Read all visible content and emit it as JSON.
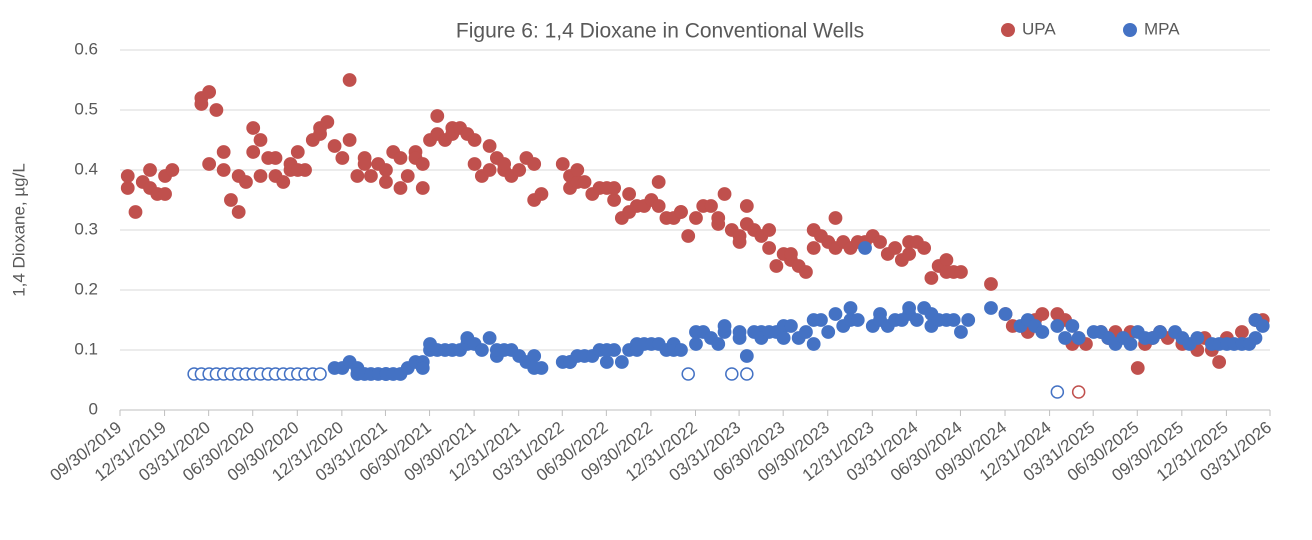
{
  "chart_data": {
    "type": "scatter",
    "title": "Figure 6: 1,4 Dioxane in Conventional Wells",
    "y_label": "1,4 Dioxane, µg/L",
    "legend": "top-right",
    "grid": true,
    "xlim": [
      "09/30/2019",
      "03/31/2026"
    ],
    "xticks": [
      "09/30/2019",
      "12/31/2019",
      "03/31/2020",
      "06/30/2020",
      "09/30/2020",
      "12/31/2020",
      "03/31/2021",
      "06/30/2021",
      "09/30/2021",
      "12/31/2021",
      "03/31/2022",
      "06/30/2022",
      "09/30/2022",
      "12/31/2022",
      "03/31/2023",
      "06/30/2023",
      "09/30/2023",
      "12/31/2023",
      "03/31/2024",
      "06/30/2024",
      "09/30/2024",
      "12/31/2024",
      "03/31/2025",
      "06/30/2025",
      "09/30/2025",
      "12/31/2025",
      "03/31/2026"
    ],
    "ylim": [
      0,
      0.6
    ],
    "yticks": [
      0,
      0.1,
      0.2,
      0.3,
      0.4,
      0.5,
      0.6
    ],
    "series": [
      {
        "name": "UPA",
        "color": "#c0504d",
        "hollow": [
          178
        ],
        "x": [
          "10/16/2019",
          "10/16/2019",
          "11/01/2019",
          "11/16/2019",
          "12/01/2019",
          "12/01/2019",
          "12/16/2019",
          "01/01/2020",
          "01/01/2020",
          "01/16/2020",
          "03/16/2020",
          "03/16/2020",
          "04/01/2020",
          "04/01/2020",
          "04/16/2020",
          "05/01/2020",
          "05/01/2020",
          "05/16/2020",
          "06/01/2020",
          "06/01/2020",
          "06/16/2020",
          "07/01/2020",
          "07/01/2020",
          "07/16/2020",
          "07/16/2020",
          "08/01/2020",
          "08/16/2020",
          "08/16/2020",
          "09/01/2020",
          "09/16/2020",
          "09/16/2020",
          "10/01/2020",
          "10/01/2020",
          "10/16/2020",
          "11/01/2020",
          "11/16/2020",
          "11/16/2020",
          "12/01/2020",
          "12/16/2020",
          "01/01/2021",
          "01/16/2021",
          "01/16/2021",
          "02/01/2021",
          "02/16/2021",
          "02/16/2021",
          "03/01/2021",
          "03/16/2021",
          "04/01/2021",
          "04/01/2021",
          "04/16/2021",
          "05/01/2021",
          "05/01/2021",
          "05/16/2021",
          "06/01/2021",
          "06/01/2021",
          "06/16/2021",
          "06/16/2021",
          "07/01/2021",
          "07/16/2021",
          "07/16/2021",
          "08/01/2021",
          "08/16/2021",
          "08/16/2021",
          "09/01/2021",
          "09/16/2021",
          "10/01/2021",
          "10/01/2021",
          "10/16/2021",
          "11/01/2021",
          "11/01/2021",
          "11/16/2021",
          "12/01/2021",
          "12/01/2021",
          "12/16/2021",
          "01/01/2022",
          "01/16/2022",
          "02/01/2022",
          "02/01/2022",
          "02/16/2022",
          "04/01/2022",
          "04/16/2022",
          "04/16/2022",
          "05/01/2022",
          "05/01/2022",
          "05/16/2022",
          "06/01/2022",
          "06/16/2022",
          "07/01/2022",
          "07/16/2022",
          "07/16/2022",
          "08/01/2022",
          "08/16/2022",
          "08/16/2022",
          "09/01/2022",
          "09/16/2022",
          "10/01/2022",
          "10/16/2022",
          "10/16/2022",
          "11/01/2022",
          "11/16/2022",
          "12/01/2022",
          "12/01/2022",
          "12/16/2022",
          "01/01/2023",
          "01/16/2023",
          "02/01/2023",
          "02/16/2023",
          "02/16/2023",
          "03/01/2023",
          "03/16/2023",
          "04/01/2023",
          "04/01/2023",
          "04/16/2023",
          "04/16/2023",
          "05/01/2023",
          "05/16/2023",
          "06/01/2023",
          "06/01/2023",
          "06/16/2023",
          "07/01/2023",
          "07/16/2023",
          "07/16/2023",
          "08/01/2023",
          "08/16/2023",
          "09/01/2023",
          "09/01/2023",
          "09/16/2023",
          "10/01/2023",
          "10/16/2023",
          "10/16/2023",
          "11/01/2023",
          "11/16/2023",
          "12/01/2023",
          "12/16/2023",
          "01/01/2024",
          "01/16/2024",
          "02/01/2024",
          "02/16/2024",
          "03/01/2024",
          "03/16/2024",
          "03/16/2024",
          "04/01/2024",
          "04/16/2024",
          "05/01/2024",
          "05/16/2024",
          "06/01/2024",
          "06/01/2024",
          "06/16/2024",
          "07/01/2024",
          "09/01/2024",
          "10/01/2024",
          "10/16/2024",
          "11/16/2024",
          "12/01/2024",
          "12/16/2024",
          "01/16/2025",
          "02/01/2025",
          "02/16/2025",
          "03/01/2025",
          "03/16/2025",
          "04/16/2025",
          "05/01/2025",
          "05/16/2025",
          "06/16/2025",
          "07/01/2025",
          "07/16/2025",
          "08/01/2025",
          "08/16/2025",
          "09/01/2025",
          "10/01/2025",
          "11/01/2025",
          "11/16/2025",
          "12/01/2025",
          "12/16/2025",
          "01/01/2026",
          "02/01/2026",
          "03/01/2026",
          "03/16/2026",
          "03/01/2025"
        ],
        "values": [
          0.37,
          0.39,
          0.33,
          0.38,
          0.4,
          0.37,
          0.36,
          0.36,
          0.39,
          0.4,
          0.52,
          0.51,
          0.53,
          0.41,
          0.5,
          0.43,
          0.4,
          0.35,
          0.33,
          0.39,
          0.38,
          0.47,
          0.43,
          0.39,
          0.45,
          0.42,
          0.39,
          0.42,
          0.38,
          0.4,
          0.41,
          0.4,
          0.43,
          0.4,
          0.45,
          0.46,
          0.47,
          0.48,
          0.44,
          0.42,
          0.55,
          0.45,
          0.39,
          0.42,
          0.41,
          0.39,
          0.41,
          0.38,
          0.4,
          0.43,
          0.42,
          0.37,
          0.39,
          0.43,
          0.42,
          0.41,
          0.37,
          0.45,
          0.49,
          0.46,
          0.45,
          0.47,
          0.46,
          0.47,
          0.46,
          0.45,
          0.41,
          0.39,
          0.4,
          0.44,
          0.42,
          0.4,
          0.41,
          0.39,
          0.4,
          0.42,
          0.41,
          0.35,
          0.36,
          0.41,
          0.37,
          0.39,
          0.38,
          0.4,
          0.38,
          0.36,
          0.37,
          0.37,
          0.35,
          0.37,
          0.32,
          0.33,
          0.36,
          0.34,
          0.34,
          0.35,
          0.34,
          0.38,
          0.32,
          0.32,
          0.33,
          0.33,
          0.29,
          0.32,
          0.34,
          0.34,
          0.31,
          0.32,
          0.36,
          0.3,
          0.29,
          0.28,
          0.34,
          0.31,
          0.3,
          0.29,
          0.3,
          0.27,
          0.24,
          0.26,
          0.25,
          0.26,
          0.24,
          0.23,
          0.27,
          0.3,
          0.29,
          0.28,
          0.32,
          0.27,
          0.28,
          0.27,
          0.28,
          0.28,
          0.29,
          0.28,
          0.26,
          0.27,
          0.25,
          0.28,
          0.26,
          0.28,
          0.27,
          0.22,
          0.24,
          0.25,
          0.23,
          0.23,
          0.23,
          0.21,
          0.16,
          0.14,
          0.13,
          0.15,
          0.16,
          0.16,
          0.15,
          0.11,
          0.12,
          0.11,
          0.13,
          0.12,
          0.13,
          0.13,
          0.07,
          0.11,
          0.12,
          0.13,
          0.12,
          0.11,
          0.1,
          0.12,
          0.1,
          0.08,
          0.12,
          0.13,
          0.15,
          0.15,
          0.03
        ]
      },
      {
        "name": "MPA",
        "color": "#4472c4",
        "hollow": [
          137,
          138,
          139,
          140,
          141,
          142,
          143,
          144,
          145,
          146,
          147,
          148,
          149,
          150,
          151,
          152,
          153,
          154,
          155,
          156,
          157,
          158
        ],
        "x": [
          "12/16/2020",
          "01/01/2021",
          "01/16/2021",
          "02/01/2021",
          "02/01/2021",
          "02/16/2021",
          "03/01/2021",
          "03/16/2021",
          "04/01/2021",
          "04/01/2021",
          "04/16/2021",
          "05/01/2021",
          "05/16/2021",
          "06/01/2021",
          "06/16/2021",
          "06/16/2021",
          "07/01/2021",
          "07/01/2021",
          "07/16/2021",
          "08/01/2021",
          "08/16/2021",
          "09/01/2021",
          "09/16/2021",
          "09/16/2021",
          "10/01/2021",
          "10/16/2021",
          "11/01/2021",
          "11/16/2021",
          "11/16/2021",
          "12/01/2021",
          "12/16/2021",
          "01/01/2022",
          "01/16/2022",
          "02/01/2022",
          "02/01/2022",
          "02/16/2022",
          "04/01/2022",
          "04/16/2022",
          "04/16/2022",
          "05/01/2022",
          "05/16/2022",
          "06/01/2022",
          "06/16/2022",
          "07/01/2022",
          "07/01/2022",
          "07/16/2022",
          "08/01/2022",
          "08/16/2022",
          "09/01/2022",
          "09/01/2022",
          "09/16/2022",
          "10/01/2022",
          "10/16/2022",
          "11/01/2022",
          "11/16/2022",
          "11/16/2022",
          "12/01/2022",
          "01/01/2023",
          "01/01/2023",
          "01/16/2023",
          "02/01/2023",
          "02/16/2023",
          "03/01/2023",
          "03/01/2023",
          "04/01/2023",
          "04/01/2023",
          "04/16/2023",
          "05/01/2023",
          "05/16/2023",
          "05/16/2023",
          "06/01/2023",
          "06/16/2023",
          "07/01/2023",
          "07/01/2023",
          "07/16/2023",
          "08/01/2023",
          "08/16/2023",
          "09/01/2023",
          "09/01/2023",
          "09/16/2023",
          "10/01/2023",
          "10/16/2023",
          "11/01/2023",
          "11/16/2023",
          "11/16/2023",
          "12/01/2023",
          "12/16/2023",
          "01/01/2024",
          "01/16/2024",
          "01/16/2024",
          "02/01/2024",
          "02/16/2024",
          "03/01/2024",
          "03/16/2024",
          "03/16/2024",
          "04/01/2024",
          "04/16/2024",
          "05/01/2024",
          "05/01/2024",
          "05/16/2024",
          "06/01/2024",
          "06/16/2024",
          "07/01/2024",
          "07/16/2024",
          "09/01/2024",
          "10/01/2024",
          "11/01/2024",
          "11/16/2024",
          "12/01/2024",
          "12/16/2024",
          "01/16/2025",
          "02/01/2025",
          "02/16/2025",
          "03/01/2025",
          "04/01/2025",
          "04/16/2025",
          "05/01/2025",
          "05/16/2025",
          "06/01/2025",
          "06/16/2025",
          "07/01/2025",
          "07/16/2025",
          "08/01/2025",
          "08/16/2025",
          "09/16/2025",
          "10/01/2025",
          "10/16/2025",
          "11/01/2025",
          "12/01/2025",
          "12/16/2025",
          "01/01/2026",
          "01/16/2026",
          "02/01/2026",
          "02/16/2026",
          "03/01/2026",
          "03/01/2026",
          "03/16/2026",
          "03/01/2020",
          "03/16/2020",
          "04/01/2020",
          "04/16/2020",
          "05/01/2020",
          "05/16/2020",
          "06/01/2020",
          "06/16/2020",
          "07/01/2020",
          "07/16/2020",
          "08/01/2020",
          "08/16/2020",
          "09/01/2020",
          "09/16/2020",
          "10/01/2020",
          "10/16/2020",
          "11/01/2020",
          "11/16/2020",
          "12/16/2022",
          "03/16/2023",
          "04/16/2023",
          "01/16/2025"
        ],
        "values": [
          0.07,
          0.07,
          0.08,
          0.07,
          0.06,
          0.06,
          0.06,
          0.06,
          0.06,
          0.06,
          0.06,
          0.06,
          0.07,
          0.08,
          0.08,
          0.07,
          0.1,
          0.11,
          0.1,
          0.1,
          0.1,
          0.1,
          0.11,
          0.12,
          0.11,
          0.1,
          0.12,
          0.09,
          0.1,
          0.1,
          0.1,
          0.09,
          0.08,
          0.09,
          0.07,
          0.07,
          0.08,
          0.08,
          0.08,
          0.09,
          0.09,
          0.09,
          0.1,
          0.08,
          0.1,
          0.1,
          0.08,
          0.1,
          0.11,
          0.1,
          0.11,
          0.11,
          0.11,
          0.1,
          0.11,
          0.1,
          0.1,
          0.11,
          0.13,
          0.13,
          0.12,
          0.11,
          0.13,
          0.14,
          0.12,
          0.13,
          0.09,
          0.13,
          0.13,
          0.12,
          0.13,
          0.13,
          0.14,
          0.12,
          0.14,
          0.12,
          0.13,
          0.11,
          0.15,
          0.15,
          0.13,
          0.16,
          0.14,
          0.17,
          0.15,
          0.15,
          0.27,
          0.14,
          0.16,
          0.15,
          0.14,
          0.15,
          0.15,
          0.16,
          0.17,
          0.15,
          0.17,
          0.16,
          0.14,
          0.15,
          0.15,
          0.15,
          0.13,
          0.15,
          0.17,
          0.16,
          0.14,
          0.15,
          0.14,
          0.13,
          0.14,
          0.12,
          0.14,
          0.12,
          0.13,
          0.13,
          0.12,
          0.11,
          0.12,
          0.11,
          0.13,
          0.12,
          0.12,
          0.13,
          0.13,
          0.12,
          0.11,
          0.12,
          0.11,
          0.11,
          0.11,
          0.11,
          0.11,
          0.11,
          0.15,
          0.12,
          0.14,
          0.06,
          0.06,
          0.06,
          0.06,
          0.06,
          0.06,
          0.06,
          0.06,
          0.06,
          0.06,
          0.06,
          0.06,
          0.06,
          0.06,
          0.06,
          0.06,
          0.06,
          0.06,
          0.06,
          0.06,
          0.06,
          0.03
        ]
      }
    ]
  }
}
